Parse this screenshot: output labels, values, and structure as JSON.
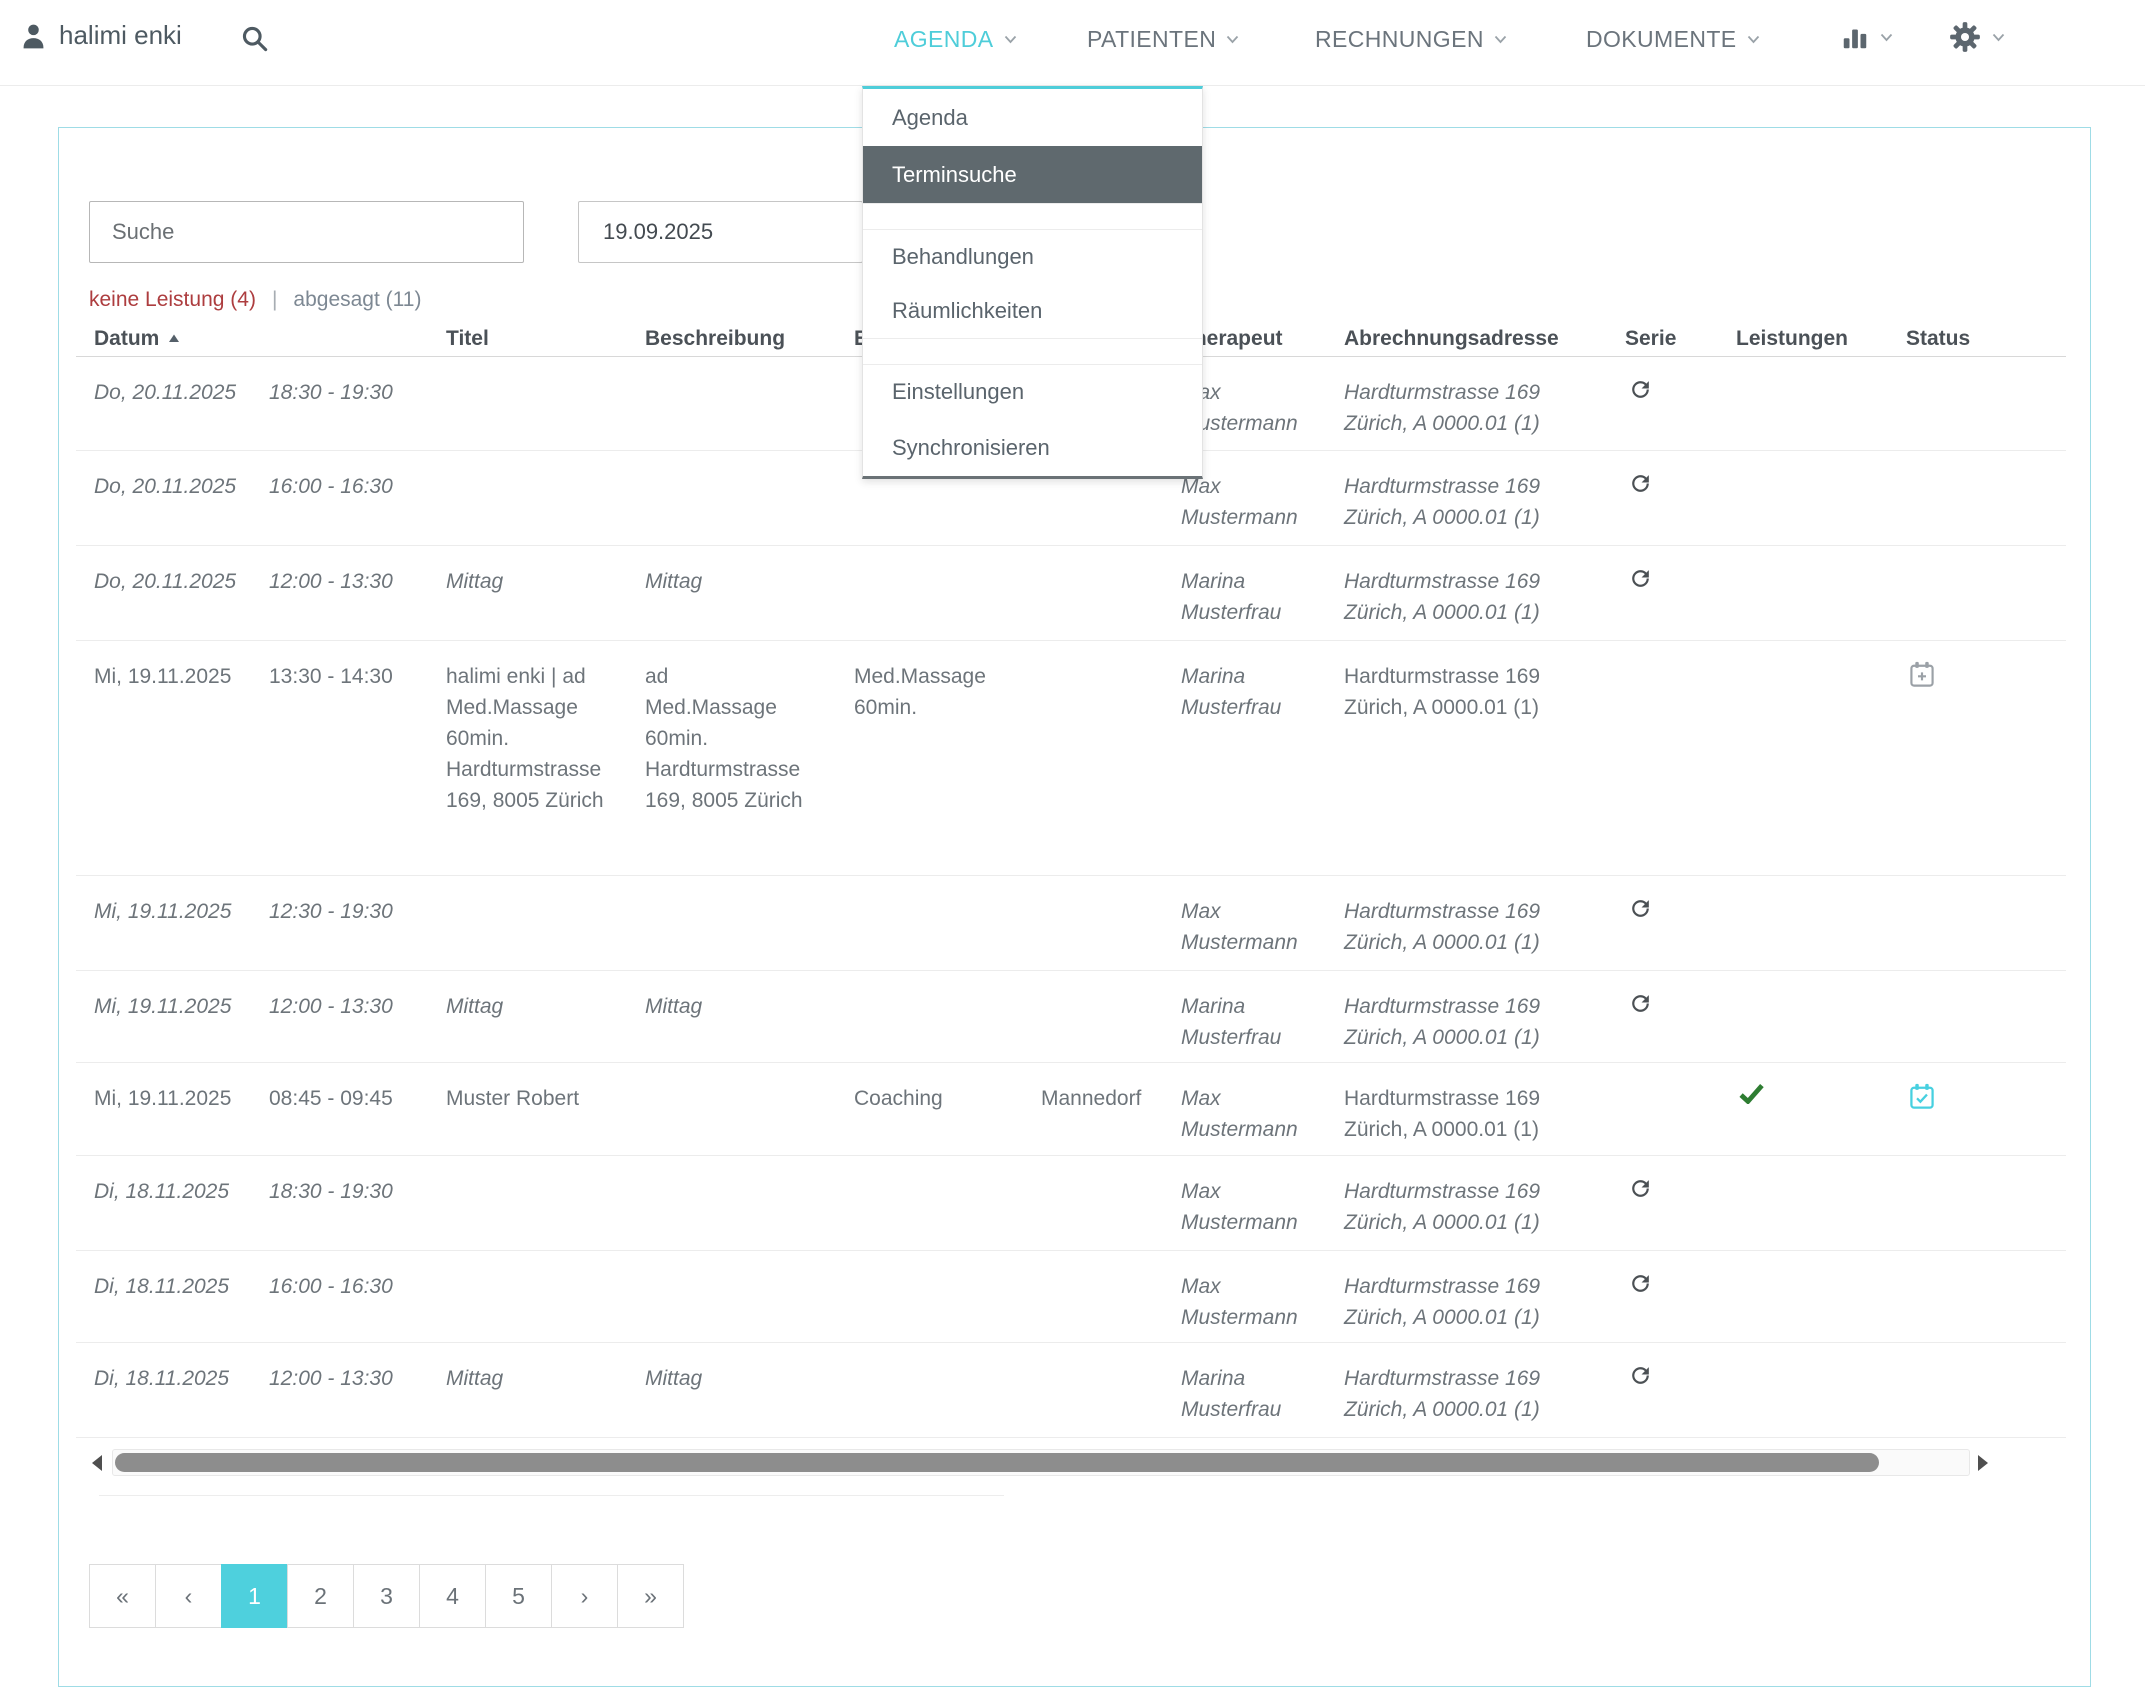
{
  "header": {
    "user_name": "halimi enki",
    "nav": [
      {
        "label": "AGENDA",
        "active": true
      },
      {
        "label": "PATIENTEN",
        "active": false
      },
      {
        "label": "RECHNUNGEN",
        "active": false
      },
      {
        "label": "DOKUMENTE",
        "active": false
      }
    ]
  },
  "menu": {
    "items": [
      {
        "label": "Agenda",
        "selected": false
      },
      {
        "label": "Terminsuche",
        "selected": true
      },
      {
        "label": "Behandlungen",
        "selected": false
      },
      {
        "label": "Räumlichkeiten",
        "selected": false
      },
      {
        "label": "Einstellungen",
        "selected": false
      },
      {
        "label": "Synchronisieren",
        "selected": false
      }
    ]
  },
  "filters": {
    "search_placeholder": "Suche",
    "date_value": "19.09.2025",
    "no_service_label": "keine Leistung (4)",
    "separator": "|",
    "cancelled_label": "abgesagt (11)"
  },
  "table": {
    "headers": {
      "datum": "Datum",
      "titel": "Titel",
      "beschreibung": "Beschreibung",
      "col4_fragment": "E",
      "col5_hidden": "",
      "therapeut": "Therapeut",
      "abrechnungsadresse": "Abrechnungsadresse",
      "serie": "Serie",
      "leistungen": "Leistungen",
      "status": "Status"
    },
    "rows": [
      {
        "datum": "Do, 20.11.2025",
        "zeit": "18:30 - 19:30",
        "titel": "",
        "beschreibung": "",
        "behandlung": "",
        "ort": "",
        "therapeut": "Max Mustermann",
        "adresse": [
          "Hardturmstrasse 169",
          "Zürich, A 0000.01 (1)"
        ],
        "serie": true,
        "leistung_erfasst": false,
        "status": "",
        "abgesagt": true
      },
      {
        "datum": "Do, 20.11.2025",
        "zeit": "16:00 - 16:30",
        "titel": "",
        "beschreibung": "",
        "behandlung": "",
        "ort": "",
        "therapeut": "Max Mustermann",
        "adresse": [
          "Hardturmstrasse 169",
          "Zürich, A 0000.01 (1)"
        ],
        "serie": true,
        "leistung_erfasst": false,
        "status": "",
        "abgesagt": true
      },
      {
        "datum": "Do, 20.11.2025",
        "zeit": "12:00 - 13:30",
        "titel": "Mittag",
        "beschreibung": "Mittag",
        "behandlung": "",
        "ort": "",
        "therapeut": "Marina Musterfrau",
        "adresse": [
          "Hardturmstrasse 169",
          "Zürich, A 0000.01 (1)"
        ],
        "serie": true,
        "leistung_erfasst": false,
        "status": "",
        "abgesagt": true
      },
      {
        "datum": "Mi, 19.11.2025",
        "zeit": "13:30 - 14:30",
        "titel": "halimi enki | ad Med.Massage 60min. Hardturmstrasse 169, 8005 Zürich",
        "beschreibung": "ad Med.Massage 60min. Hardturmstrasse 169, 8005 Zürich",
        "behandlung": "Med.Massage 60min.",
        "ort": "",
        "therapeut": "Marina Musterfrau",
        "adresse": [
          "Hardturmstrasse 169",
          "Zürich, A 0000.01 (1)"
        ],
        "serie": false,
        "leistung_erfasst": false,
        "status": "calendar-plus",
        "abgesagt": false
      },
      {
        "datum": "Mi, 19.11.2025",
        "zeit": "12:30 - 19:30",
        "titel": "",
        "beschreibung": "",
        "behandlung": "",
        "ort": "",
        "therapeut": "Max Mustermann",
        "adresse": [
          "Hardturmstrasse 169",
          "Zürich, A 0000.01 (1)"
        ],
        "serie": true,
        "leistung_erfasst": false,
        "status": "",
        "abgesagt": true
      },
      {
        "datum": "Mi, 19.11.2025",
        "zeit": "12:00 - 13:30",
        "titel": "Mittag",
        "beschreibung": "Mittag",
        "behandlung": "",
        "ort": "",
        "therapeut": "Marina Musterfrau",
        "adresse": [
          "Hardturmstrasse 169",
          "Zürich, A 0000.01 (1)"
        ],
        "serie": true,
        "leistung_erfasst": false,
        "status": "",
        "abgesagt": true
      },
      {
        "datum": "Mi, 19.11.2025",
        "zeit": "08:45 - 09:45",
        "titel": "Muster Robert",
        "beschreibung": "",
        "behandlung": "Coaching",
        "ort": "Mannedorf",
        "therapeut": "Max Mustermann",
        "adresse": [
          "Hardturmstrasse 169",
          "Zürich, A 0000.01 (1)"
        ],
        "serie": false,
        "leistung_erfasst": true,
        "status": "calendar-check",
        "abgesagt": false
      },
      {
        "datum": "Di, 18.11.2025",
        "zeit": "18:30 - 19:30",
        "titel": "",
        "beschreibung": "",
        "behandlung": "",
        "ort": "",
        "therapeut": "Max Mustermann",
        "adresse": [
          "Hardturmstrasse 169",
          "Zürich, A 0000.01 (1)"
        ],
        "serie": true,
        "leistung_erfasst": false,
        "status": "",
        "abgesagt": true
      },
      {
        "datum": "Di, 18.11.2025",
        "zeit": "16:00 - 16:30",
        "titel": "",
        "beschreibung": "",
        "behandlung": "",
        "ort": "",
        "therapeut": "Max Mustermann",
        "adresse": [
          "Hardturmstrasse 169",
          "Zürich, A 0000.01 (1)"
        ],
        "serie": true,
        "leistung_erfasst": false,
        "status": "",
        "abgesagt": true
      },
      {
        "datum": "Di, 18.11.2025",
        "zeit": "12:00 - 13:30",
        "titel": "Mittag",
        "beschreibung": "Mittag",
        "behandlung": "",
        "ort": "",
        "therapeut": "Marina Musterfrau",
        "adresse": [
          "Hardturmstrasse 169",
          "Zürich, A 0000.01 (1)"
        ],
        "serie": true,
        "leistung_erfasst": false,
        "status": "",
        "abgesagt": true
      }
    ]
  },
  "pagination": {
    "first_label": "«",
    "prev_label": "‹",
    "pages": [
      "1",
      "2",
      "3",
      "4",
      "5"
    ],
    "next_label": "›",
    "last_label": "»",
    "active_page": "1"
  },
  "colors": {
    "accent_teal": "#4ecdd9",
    "menu_selected_bg": "#5f696e",
    "filter_red": "#ad3d3f",
    "check_green": "#2e7d32",
    "status_teal": "#47d0e0",
    "scrollbar_thumb": "#8d8d8d"
  }
}
